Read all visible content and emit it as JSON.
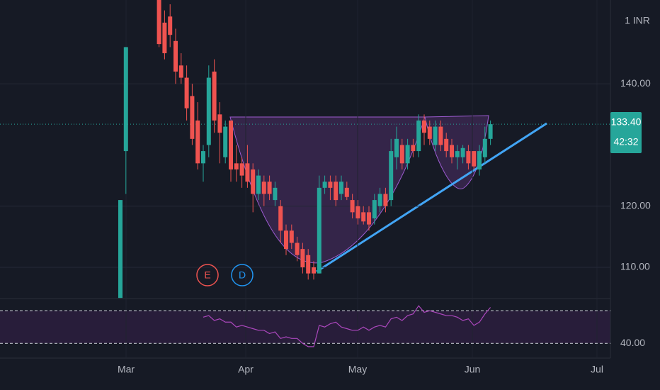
{
  "chart_data": {
    "type": "candlestick",
    "up_color": "#26a69a",
    "down_color": "#ef5350",
    "open": [
      105,
      129,
      null,
      null,
      null,
      null,
      null,
      154,
      150,
      151,
      147,
      143,
      141,
      138,
      134,
      127,
      130,
      142,
      135,
      128,
      134,
      127,
      127,
      127,
      126,
      122,
      124,
      124,
      121,
      120,
      116,
      116,
      114,
      113,
      112,
      110,
      109,
      123,
      124,
      124,
      122,
      123,
      121,
      120,
      119,
      119,
      118,
      120,
      122,
      121,
      128,
      130,
      127,
      130,
      129,
      134,
      133,
      130,
      133,
      131,
      130,
      128,
      128,
      129,
      129,
      126,
      128,
      131
    ],
    "high": [
      121,
      146,
      null,
      null,
      null,
      null,
      null,
      155,
      152,
      153,
      149,
      145,
      143,
      140,
      137,
      130,
      143,
      144,
      137,
      134,
      134,
      130,
      128,
      130,
      127,
      126,
      125,
      125,
      124,
      121,
      117,
      117,
      115,
      114,
      113,
      111,
      125,
      125,
      125,
      125,
      125,
      124,
      122,
      121,
      120,
      120,
      122,
      123,
      123,
      131,
      133,
      131,
      131,
      131,
      135,
      135,
      134,
      134,
      134,
      132,
      131,
      130,
      130,
      130,
      129,
      130,
      133,
      134
    ],
    "low": [
      105,
      122,
      null,
      null,
      null,
      null,
      null,
      146,
      144,
      146,
      140,
      140,
      134,
      130,
      126,
      124,
      128,
      132,
      127,
      127,
      124,
      124,
      123,
      123,
      119,
      121,
      120,
      121,
      120,
      114,
      112,
      113,
      111,
      109,
      108,
      108,
      109,
      122,
      121,
      120,
      121,
      121,
      118,
      117,
      117,
      116,
      117,
      119,
      119,
      120,
      126,
      126,
      126,
      128,
      128,
      130,
      130,
      129,
      129,
      128,
      127,
      126,
      127,
      126,
      126,
      125,
      127,
      130
    ],
    "close": [
      121,
      146,
      null,
      null,
      null,
      null,
      null,
      146.5,
      145,
      148,
      142,
      141,
      136,
      131,
      127,
      129,
      141,
      134,
      132,
      133,
      126,
      126,
      125,
      124,
      122,
      125,
      122,
      122,
      123,
      116,
      113,
      114,
      112,
      110,
      109,
      109,
      123,
      124,
      123,
      121,
      124,
      121.5,
      119,
      118,
      117.5,
      117,
      121,
      122,
      120,
      129,
      131,
      127,
      130,
      129,
      134,
      132,
      131,
      133,
      130,
      129,
      128,
      129,
      129.5,
      127,
      126.5,
      129,
      131,
      133.4
    ],
    "ylim": [
      104.9,
      153.7
    ],
    "yticks": [
      {
        "value": 140,
        "label": "140.00"
      },
      {
        "value": 120,
        "label": "120.00"
      },
      {
        "value": 110,
        "label": "110.00"
      }
    ],
    "last_price": {
      "value": 133.4,
      "label": "133.40"
    },
    "countdown": "42:32",
    "currency": "1 INR",
    "months": [
      "Mar",
      "Apr",
      "May",
      "Jun",
      "Jul"
    ],
    "events": [
      "E",
      "D"
    ],
    "rsi": {
      "color": "#ab47bc",
      "values": [
        null,
        null,
        null,
        null,
        null,
        null,
        null,
        null,
        null,
        null,
        null,
        null,
        null,
        null,
        null,
        56,
        57,
        54,
        55,
        53,
        53,
        50,
        51,
        50,
        49,
        48,
        48,
        46,
        47,
        43,
        44,
        43,
        43,
        40,
        38,
        38,
        51,
        50,
        52,
        53,
        50,
        49,
        48,
        48,
        50,
        48,
        50,
        51,
        50,
        55,
        56,
        54,
        57,
        58,
        63,
        59,
        60,
        59,
        58,
        57,
        57,
        56,
        54,
        55,
        51,
        53,
        58,
        62
      ],
      "ylim": [
        31,
        67
      ],
      "bands": [
        40,
        60
      ],
      "yticks": [
        {
          "value": 40,
          "label": "40.00"
        }
      ]
    }
  }
}
